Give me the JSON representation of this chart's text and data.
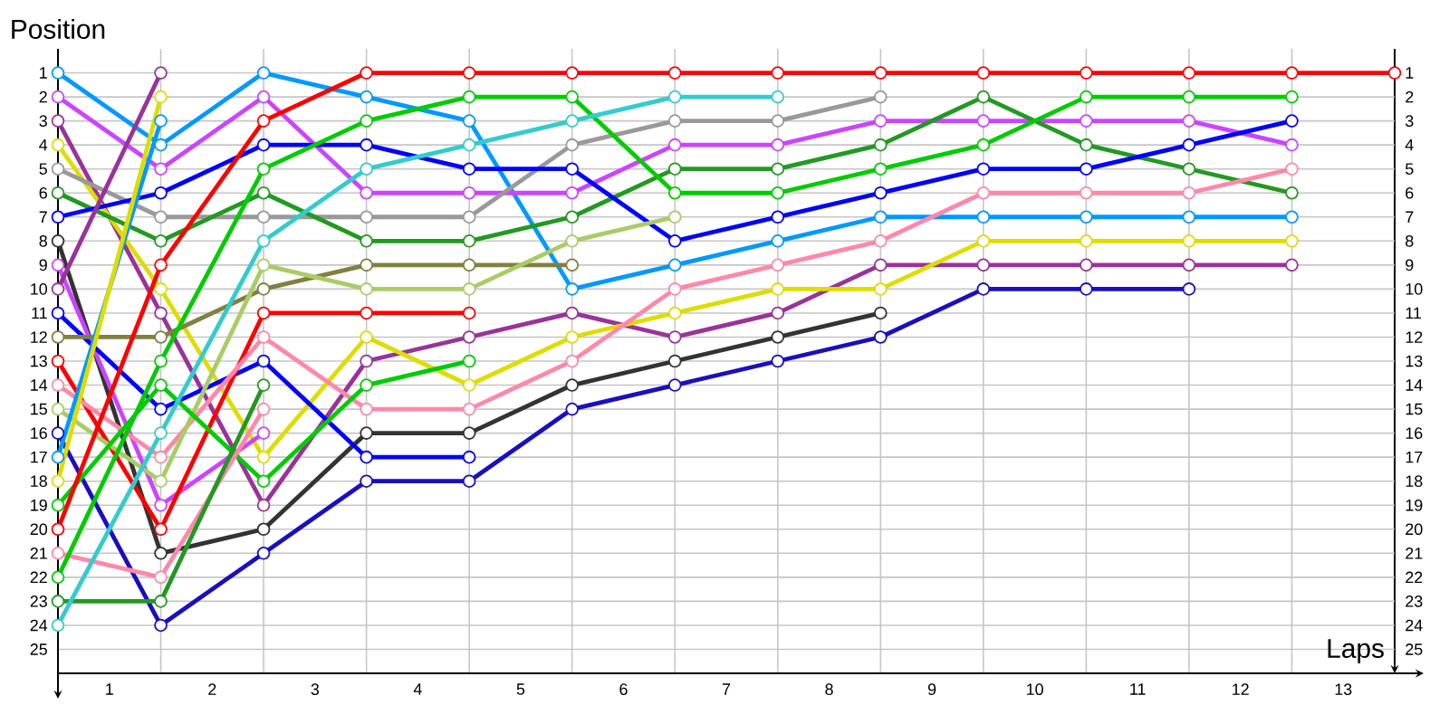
{
  "chart_data": {
    "type": "line",
    "xlabel": "Laps",
    "ylabel": "Position",
    "x": [
      0,
      1,
      2,
      3,
      4,
      5,
      6,
      7,
      8,
      9,
      10,
      11,
      12,
      13
    ],
    "xlim": [
      0,
      13
    ],
    "xticks": [
      {
        "value": 0.5,
        "label": "1"
      },
      {
        "value": 1.5,
        "label": "2"
      },
      {
        "value": 2.5,
        "label": "3"
      },
      {
        "value": 3.5,
        "label": "4"
      },
      {
        "value": 4.5,
        "label": "5"
      },
      {
        "value": 5.5,
        "label": "6"
      },
      {
        "value": 6.5,
        "label": "7"
      },
      {
        "value": 7.5,
        "label": "8"
      },
      {
        "value": 8.5,
        "label": "9"
      },
      {
        "value": 9.5,
        "label": "10"
      },
      {
        "value": 10.5,
        "label": "11"
      },
      {
        "value": 11.5,
        "label": "12"
      },
      {
        "value": 12.5,
        "label": "13"
      },
      {
        "value": 1,
        "label": null
      },
      {
        "value": 2,
        "label": null
      },
      {
        "value": 3,
        "label": null
      },
      {
        "value": 4,
        "label": null
      },
      {
        "value": 5,
        "label": null
      },
      {
        "value": 6,
        "label": null
      },
      {
        "value": 7,
        "label": null
      },
      {
        "value": 8,
        "label": null
      },
      {
        "value": 9,
        "label": null
      },
      {
        "value": 10,
        "label": null
      },
      {
        "value": 11,
        "label": null
      },
      {
        "value": 12,
        "label": null
      }
    ],
    "ylim": [
      26,
      0
    ],
    "yticks": [
      1,
      2,
      3,
      4,
      5,
      6,
      7,
      8,
      9,
      10,
      11,
      12,
      13,
      14,
      15,
      16,
      17,
      18,
      19,
      20,
      21,
      22,
      23,
      24,
      25
    ],
    "y2lim": [
      26,
      0
    ],
    "y2ticks": [
      1,
      2,
      3,
      4,
      5,
      6,
      7,
      8,
      9,
      10,
      11,
      12,
      13,
      14,
      15,
      16,
      17,
      18,
      19,
      20,
      21,
      22,
      23,
      24,
      25
    ],
    "grid": true,
    "marker": "circle",
    "line_style": "solid",
    "series": [
      {
        "color": "#0099ff",
        "values": [
          1,
          4,
          1,
          2,
          3,
          10,
          9,
          8,
          7,
          7,
          7,
          7,
          7,
          null
        ]
      },
      {
        "color": "#cc44ff",
        "values": [
          2,
          5,
          2,
          6,
          6,
          6,
          4,
          4,
          3,
          3,
          3,
          3,
          4,
          null
        ]
      },
      {
        "color": "#993399",
        "values": [
          3,
          11,
          19,
          13,
          12,
          11,
          12,
          11,
          9,
          9,
          9,
          9,
          9,
          null
        ]
      },
      {
        "color": "#dddd00",
        "values": [
          4,
          10,
          17,
          12,
          14,
          12,
          11,
          10,
          10,
          8,
          8,
          8,
          8,
          null
        ]
      },
      {
        "color": "#999999",
        "values": [
          5,
          7,
          7,
          7,
          7,
          4,
          3,
          3,
          2,
          null,
          null,
          null,
          null,
          null
        ]
      },
      {
        "color": "#229922",
        "values": [
          6,
          8,
          6,
          8,
          8,
          7,
          5,
          5,
          4,
          2,
          4,
          5,
          6,
          null
        ]
      },
      {
        "color": "#0000ff",
        "values": [
          7,
          6,
          4,
          4,
          5,
          5,
          8,
          7,
          6,
          5,
          5,
          4,
          3,
          null
        ]
      },
      {
        "color": "#333333",
        "values": [
          8,
          21,
          20,
          16,
          16,
          14,
          13,
          12,
          11,
          null,
          null,
          null,
          null,
          null
        ]
      },
      {
        "color": "#cc44ff",
        "values": [
          9,
          19,
          16,
          null,
          null,
          null,
          null,
          null,
          null,
          null,
          null,
          null,
          null,
          null
        ]
      },
      {
        "color": "#993399",
        "values": [
          10,
          1,
          null,
          null,
          null,
          null,
          null,
          null,
          null,
          null,
          null,
          null,
          null,
          null
        ]
      },
      {
        "color": "#0000ff",
        "values": [
          11,
          15,
          13,
          17,
          17,
          null,
          null,
          null,
          null,
          null,
          null,
          null,
          null,
          null
        ]
      },
      {
        "color": "#808040",
        "values": [
          12,
          12,
          10,
          9,
          9,
          9,
          null,
          null,
          null,
          null,
          null,
          null,
          null,
          null
        ]
      },
      {
        "color": "#ff0000",
        "values": [
          13,
          20,
          11,
          11,
          11,
          null,
          null,
          null,
          null,
          null,
          null,
          null,
          null,
          null
        ]
      },
      {
        "color": "#ff88aa",
        "values": [
          14,
          17,
          12,
          15,
          15,
          13,
          10,
          9,
          8,
          6,
          6,
          6,
          5,
          null
        ]
      },
      {
        "color": "#aacc66",
        "values": [
          15,
          18,
          9,
          10,
          10,
          8,
          7,
          null,
          null,
          null,
          null,
          null,
          null,
          null
        ]
      },
      {
        "color": "#1a0fbf",
        "values": [
          16,
          24,
          21,
          18,
          18,
          15,
          14,
          13,
          12,
          10,
          10,
          10,
          null,
          null
        ]
      },
      {
        "color": "#0099ff",
        "values": [
          17,
          3,
          null,
          null,
          null,
          null,
          null,
          null,
          null,
          null,
          null,
          null,
          null,
          null
        ]
      },
      {
        "color": "#dddd00",
        "values": [
          18,
          2,
          null,
          null,
          null,
          null,
          null,
          null,
          null,
          null,
          null,
          null,
          null,
          null
        ]
      },
      {
        "color": "#00cc00",
        "values": [
          19,
          14,
          18,
          14,
          13,
          null,
          null,
          null,
          null,
          null,
          null,
          null,
          null,
          null
        ]
      },
      {
        "color": "#ff0000",
        "values": [
          20,
          9,
          3,
          1,
          1,
          1,
          1,
          1,
          1,
          1,
          1,
          1,
          1,
          1
        ]
      },
      {
        "color": "#ff88aa",
        "values": [
          21,
          22,
          15,
          null,
          null,
          null,
          null,
          null,
          null,
          null,
          null,
          null,
          null,
          null
        ]
      },
      {
        "color": "#00cc00",
        "values": [
          22,
          13,
          5,
          3,
          2,
          2,
          6,
          6,
          5,
          4,
          2,
          2,
          2,
          null
        ]
      },
      {
        "color": "#229922",
        "values": [
          23,
          23,
          14,
          null,
          null,
          null,
          null,
          null,
          null,
          null,
          null,
          null,
          null,
          null
        ]
      },
      {
        "color": "#33cccc",
        "values": [
          24,
          16,
          8,
          5,
          4,
          3,
          2,
          2,
          null,
          null,
          null,
          null,
          null,
          null
        ]
      }
    ]
  }
}
